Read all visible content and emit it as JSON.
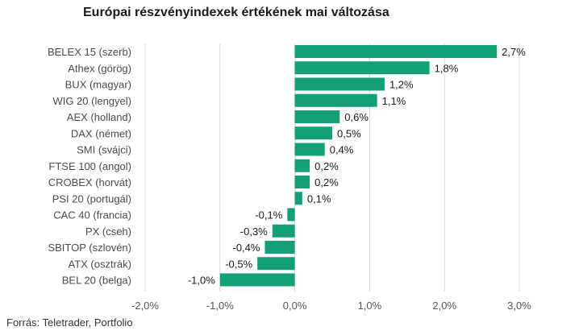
{
  "chart_data": {
    "type": "bar",
    "orientation": "horizontal",
    "title": "Európai részvényindexek értékének mai változása",
    "categories": [
      "BELEX 15 (szerb)",
      "Athex (görög)",
      "BUX (magyar)",
      "WIG 20 (lengyel)",
      "AEX (holland)",
      "DAX (német)",
      "SMI (svájci)",
      "FTSE 100 (angol)",
      "CROBEX (horvát)",
      "PSI 20 (portugál)",
      "CAC 40 (francia)",
      "PX (cseh)",
      "SBITOP (szlovén)",
      "ATX (osztrák)",
      "BEL 20 (belga)"
    ],
    "values": [
      2.7,
      1.8,
      1.2,
      1.1,
      0.6,
      0.5,
      0.4,
      0.2,
      0.2,
      0.1,
      -0.1,
      -0.3,
      -0.4,
      -0.5,
      -1.0
    ],
    "value_labels": [
      "2,7%",
      "1,8%",
      "1,2%",
      "1,1%",
      "0,6%",
      "0,5%",
      "0,4%",
      "0,2%",
      "0,2%",
      "0,1%",
      "-0,1%",
      "-0,3%",
      "-0,4%",
      "-0,5%",
      "-1,0%"
    ],
    "xlim": [
      -2.0,
      3.0
    ],
    "xticks": [
      -2.0,
      -1.0,
      0.0,
      1.0,
      2.0,
      3.0
    ],
    "xtick_labels": [
      "-2,0%",
      "-1,0%",
      "0,0%",
      "1,0%",
      "2,0%",
      "3,0%"
    ],
    "xlabel": "",
    "ylabel": "",
    "grid": "vertical",
    "legend": "none",
    "bar_color": "#13a077",
    "grid_color": "#d9d9d9"
  },
  "source": "Forrás: Teletrader, Portfolio"
}
